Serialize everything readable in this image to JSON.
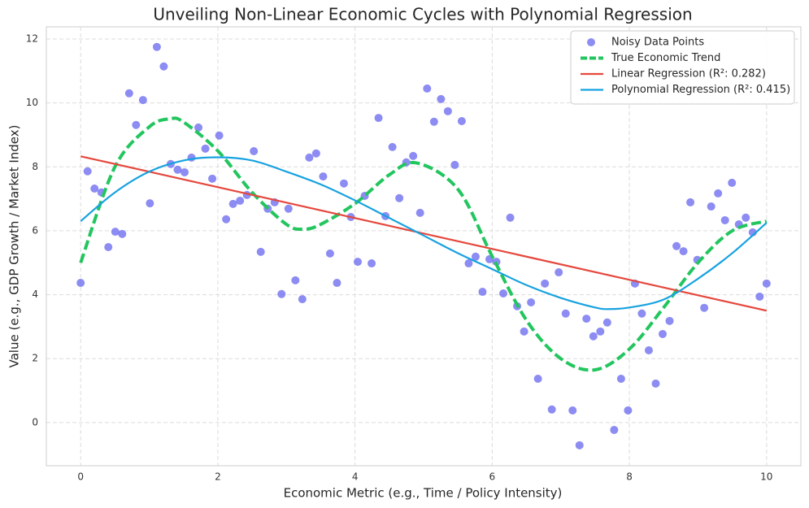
{
  "chart_data": {
    "type": "scatter",
    "title": "Unveiling Non-Linear Economic Cycles with Polynomial Regression",
    "x_label": "Economic Metric (e.g., Time / Policy Intensity)",
    "y_label": "Value (e.g., GDP Growth / Market Index)",
    "xlim": [
      -0.5,
      10.5
    ],
    "ylim": [
      -1.35,
      12.38
    ],
    "xticks": [
      0,
      2,
      4,
      6,
      8,
      10
    ],
    "yticks": [
      0,
      2,
      4,
      6,
      8,
      10,
      12
    ],
    "grid": true,
    "legend": "upper right",
    "series": [
      {
        "name": "Noisy Data Points",
        "kind": "points",
        "color": "#6f6ff0",
        "x": [
          0,
          0.101,
          0.202,
          0.303,
          0.404,
          0.505,
          0.606,
          0.707,
          0.808,
          0.909,
          1.01,
          1.111,
          1.212,
          1.313,
          1.414,
          1.515,
          1.616,
          1.717,
          1.818,
          1.919,
          2.02,
          2.121,
          2.222,
          2.323,
          2.424,
          2.525,
          2.626,
          2.727,
          2.828,
          2.929,
          3.03,
          3.131,
          3.232,
          3.333,
          3.434,
          3.535,
          3.636,
          3.737,
          3.838,
          3.939,
          4.04,
          4.141,
          4.242,
          4.343,
          4.444,
          4.545,
          4.646,
          4.747,
          4.848,
          4.949,
          5.051,
          5.152,
          5.253,
          5.354,
          5.455,
          5.556,
          5.657,
          5.758,
          5.859,
          5.96,
          6.061,
          6.162,
          6.263,
          6.364,
          6.465,
          6.566,
          6.667,
          6.768,
          6.869,
          6.97,
          7.071,
          7.172,
          7.273,
          7.374,
          7.475,
          7.576,
          7.677,
          7.778,
          7.879,
          7.98,
          8.081,
          8.182,
          8.283,
          8.384,
          8.485,
          8.586,
          8.687,
          8.788,
          8.889,
          8.99,
          9.091,
          9.192,
          9.293,
          9.394,
          9.495,
          9.596,
          9.697,
          9.798,
          9.899,
          10
        ],
        "values": [
          4.37,
          7.86,
          7.32,
          7.2,
          5.49,
          5.97,
          5.9,
          10.3,
          9.31,
          10.09,
          6.86,
          11.75,
          11.14,
          8.09,
          7.91,
          7.83,
          8.29,
          9.23,
          8.57,
          7.63,
          8.98,
          6.36,
          6.84,
          6.94,
          7.12,
          8.49,
          5.34,
          6.69,
          6.89,
          4.02,
          6.69,
          4.45,
          3.86,
          8.29,
          8.42,
          7.7,
          5.29,
          4.37,
          7.48,
          6.43,
          5.03,
          7.09,
          4.98,
          9.53,
          6.46,
          8.62,
          7.02,
          8.14,
          8.34,
          6.56,
          10.45,
          9.41,
          10.12,
          9.74,
          8.06,
          9.43,
          4.98,
          5.19,
          4.09,
          5.11,
          5.03,
          4.04,
          6.41,
          3.64,
          2.85,
          3.76,
          1.37,
          4.35,
          0.41,
          4.7,
          3.41,
          0.38,
          -0.71,
          3.25,
          2.7,
          2.85,
          3.13,
          -0.23,
          1.37,
          0.38,
          4.35,
          3.41,
          2.26,
          1.22,
          2.77,
          3.18,
          5.52,
          5.36,
          6.89,
          5.09,
          3.59,
          6.76,
          7.17,
          6.33,
          7.5,
          6.2,
          6.41,
          5.95,
          3.94,
          4.35
        ]
      },
      {
        "name": "True Economic Trend",
        "kind": "line",
        "style": "dashed",
        "color": "#22c55e",
        "x": [
          0,
          0.5,
          1,
          1.3,
          1.5,
          2,
          2.5,
          3,
          3.25,
          3.5,
          4,
          4.5,
          4.9,
          5.5,
          6,
          6.5,
          7,
          7.5,
          8,
          8.5,
          9,
          9.5,
          10
        ],
        "values": [
          5.0,
          8.0,
          9.25,
          9.5,
          9.4,
          8.5,
          7.2,
          6.2,
          6.05,
          6.2,
          6.85,
          7.75,
          8.12,
          7.3,
          5.2,
          3.2,
          2.0,
          1.65,
          2.3,
          3.6,
          5.0,
          6.0,
          6.3
        ]
      },
      {
        "name": "Linear Regression (R²: 0.282)",
        "kind": "line",
        "style": "solid",
        "color": "#e5483d",
        "x": [
          0,
          10
        ],
        "values": [
          8.33,
          3.5
        ]
      },
      {
        "name": "Polynomial Regression (R²: 0.415)",
        "kind": "line",
        "style": "solid",
        "color": "#17a2e0",
        "x": [
          0,
          0.5,
          1,
          1.5,
          2,
          2.5,
          3,
          3.5,
          4,
          4.5,
          5,
          5.5,
          6,
          6.5,
          7,
          7.5,
          7.7,
          8,
          8.5,
          9,
          9.5,
          10
        ],
        "values": [
          6.3,
          7.2,
          7.85,
          8.2,
          8.3,
          8.2,
          7.85,
          7.45,
          6.95,
          6.4,
          5.85,
          5.3,
          4.8,
          4.3,
          3.9,
          3.6,
          3.55,
          3.6,
          3.85,
          4.5,
          5.3,
          6.25
        ]
      }
    ]
  }
}
